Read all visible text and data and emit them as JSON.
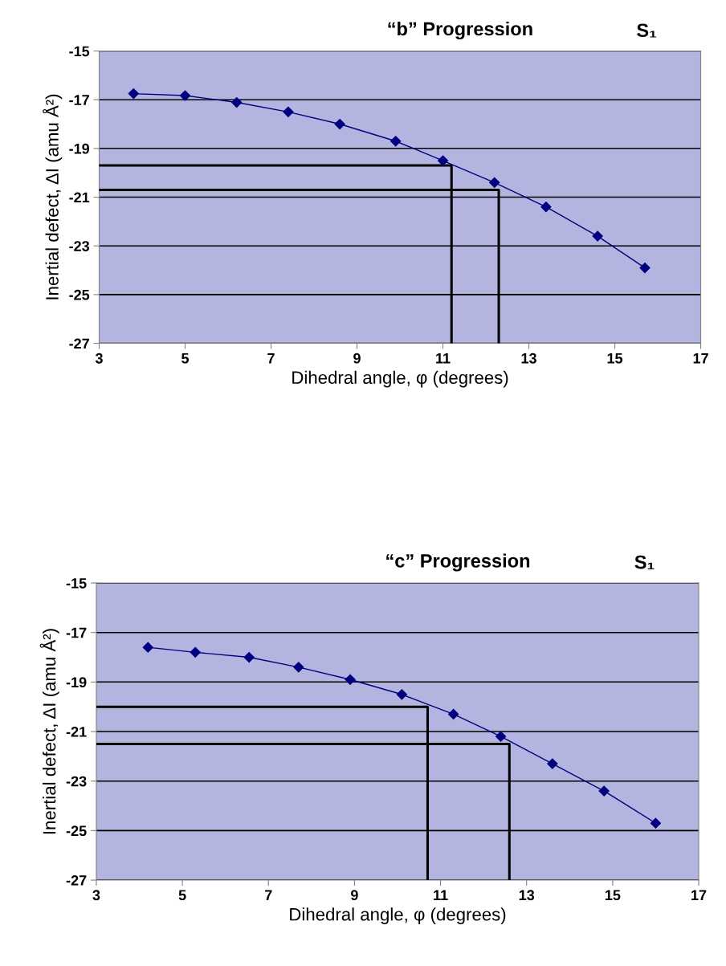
{
  "chart_data": [
    {
      "type": "line",
      "title": "“b” Progression",
      "annotations": [
        "S₁"
      ],
      "xlabel": "Dihedral angle, φ (degrees)",
      "ylabel": "Inertial defect, ΔI (amu Å²)",
      "xlim": [
        3,
        17
      ],
      "xticks": [
        3,
        5,
        7,
        9,
        11,
        13,
        15,
        17
      ],
      "ylim": [
        -27,
        -15
      ],
      "yticks": [
        -27,
        -25,
        -23,
        -21,
        -19,
        -17,
        -15
      ],
      "grid": "y",
      "marker": "diamond",
      "line_style": "solid",
      "series": [
        {
          "color": "#000080",
          "x": [
            3.8,
            5.0,
            6.2,
            7.4,
            8.6,
            9.9,
            11.0,
            12.2,
            13.4,
            14.6,
            15.7
          ],
          "values": [
            -16.75,
            -16.83,
            -17.11,
            -17.5,
            -18.0,
            -18.7,
            -19.5,
            -20.4,
            -21.4,
            -22.6,
            -23.9
          ]
        },
        {
          "type": "line",
          "color": "#000000",
          "marker": "none",
          "x": [
            3,
            11.2,
            11.2
          ],
          "values": [
            -19.7,
            -19.7,
            -27
          ]
        },
        {
          "type": "line",
          "color": "#000000",
          "marker": "none",
          "x": [
            3,
            12.3,
            12.3
          ],
          "values": [
            -20.7,
            -20.7,
            -27
          ]
        }
      ]
    },
    {
      "type": "line",
      "title": "“c” Progression",
      "annotations": [
        "S₁"
      ],
      "xlabel": "Dihedral angle, φ (degrees)",
      "ylabel": "Inertial defect, ΔI (amu Å²)",
      "xlim": [
        3,
        17
      ],
      "xticks": [
        3,
        5,
        7,
        9,
        11,
        13,
        15,
        17
      ],
      "ylim": [
        -27,
        -15
      ],
      "yticks": [
        -27,
        -25,
        -23,
        -21,
        -19,
        -17,
        -15
      ],
      "grid": "y",
      "marker": "diamond",
      "line_style": "solid",
      "series": [
        {
          "color": "#000080",
          "x": [
            4.2,
            5.3,
            6.55,
            7.7,
            8.9,
            10.1,
            11.3,
            12.4,
            13.6,
            14.8,
            16.0
          ],
          "values": [
            -17.6,
            -17.8,
            -18.0,
            -18.4,
            -18.9,
            -19.5,
            -20.3,
            -21.2,
            -22.3,
            -23.4,
            -24.7
          ]
        },
        {
          "type": "line",
          "color": "#000000",
          "marker": "none",
          "x": [
            3,
            10.7,
            10.7
          ],
          "values": [
            -20.0,
            -20.0,
            -27
          ]
        },
        {
          "type": "line",
          "color": "#000000",
          "marker": "none",
          "x": [
            3,
            12.6,
            12.6
          ],
          "values": [
            -21.5,
            -21.5,
            -27
          ]
        }
      ]
    }
  ]
}
